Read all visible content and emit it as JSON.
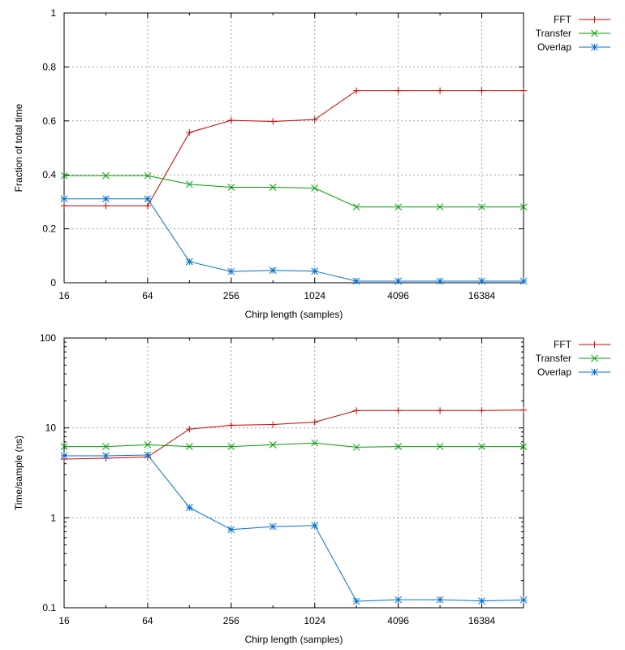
{
  "chart_data": [
    {
      "type": "line",
      "x_scale": "log2",
      "y_scale": "linear",
      "xlabel": "Chirp length (samples)",
      "ylabel": "Fraction of total time",
      "xlim": [
        16,
        32768
      ],
      "ylim": [
        0,
        1
      ],
      "xticks": [
        16,
        64,
        256,
        1024,
        4096,
        16384
      ],
      "xtick_labels": [
        "16",
        "64",
        "256",
        "1024",
        "4096",
        "16384"
      ],
      "yticks": [
        0,
        0.2,
        0.4,
        0.6,
        0.8,
        1
      ],
      "ytick_labels": [
        "0",
        "0.2",
        "0.4",
        "0.6",
        "0.8",
        "1"
      ],
      "grid": true,
      "legend_position": "outside-top-right",
      "x": [
        16,
        32,
        64,
        128,
        256,
        512,
        1024,
        2048,
        4096,
        8192,
        16384,
        32768
      ],
      "series": [
        {
          "name": "FFT",
          "color": "#cc0000",
          "marker": "plus",
          "values": [
            0.285,
            0.285,
            0.285,
            0.557,
            0.602,
            0.598,
            0.605,
            0.712,
            0.712,
            0.712,
            0.712,
            0.712
          ]
        },
        {
          "name": "Transfer",
          "color": "#00a000",
          "marker": "cross",
          "values": [
            0.397,
            0.397,
            0.397,
            0.365,
            0.354,
            0.354,
            0.351,
            0.281,
            0.281,
            0.281,
            0.281,
            0.281
          ]
        },
        {
          "name": "Overlap",
          "color": "#0070d0",
          "marker": "star",
          "values": [
            0.311,
            0.311,
            0.311,
            0.078,
            0.042,
            0.046,
            0.043,
            0.006,
            0.006,
            0.006,
            0.006,
            0.006
          ]
        }
      ]
    },
    {
      "type": "line",
      "x_scale": "log2",
      "y_scale": "log10",
      "xlabel": "Chirp length (samples)",
      "ylabel": "Time/sample (ns)",
      "xlim": [
        16,
        32768
      ],
      "ylim": [
        0.1,
        100
      ],
      "xticks": [
        16,
        64,
        256,
        1024,
        4096,
        16384
      ],
      "xtick_labels": [
        "16",
        "64",
        "256",
        "1024",
        "4096",
        "16384"
      ],
      "yticks": [
        0.1,
        1,
        10,
        100
      ],
      "ytick_labels": [
        "0.1",
        "1",
        "10",
        "100"
      ],
      "grid": true,
      "legend_position": "outside-top-right",
      "x": [
        16,
        32,
        64,
        128,
        256,
        512,
        1024,
        2048,
        4096,
        8192,
        16384,
        32768
      ],
      "series": [
        {
          "name": "FFT",
          "color": "#cc0000",
          "marker": "plus",
          "values": [
            4.5,
            4.6,
            4.75,
            9.7,
            10.7,
            10.9,
            11.6,
            15.6,
            15.6,
            15.6,
            15.6,
            15.8
          ]
        },
        {
          "name": "Transfer",
          "color": "#00a000",
          "marker": "cross",
          "values": [
            6.2,
            6.2,
            6.5,
            6.2,
            6.2,
            6.5,
            6.8,
            6.1,
            6.2,
            6.2,
            6.2,
            6.2
          ]
        },
        {
          "name": "Overlap",
          "color": "#0070d0",
          "marker": "star",
          "values": [
            4.9,
            4.9,
            5.0,
            1.3,
            0.74,
            0.8,
            0.82,
            0.118,
            0.123,
            0.123,
            0.119,
            0.122
          ]
        }
      ]
    }
  ]
}
